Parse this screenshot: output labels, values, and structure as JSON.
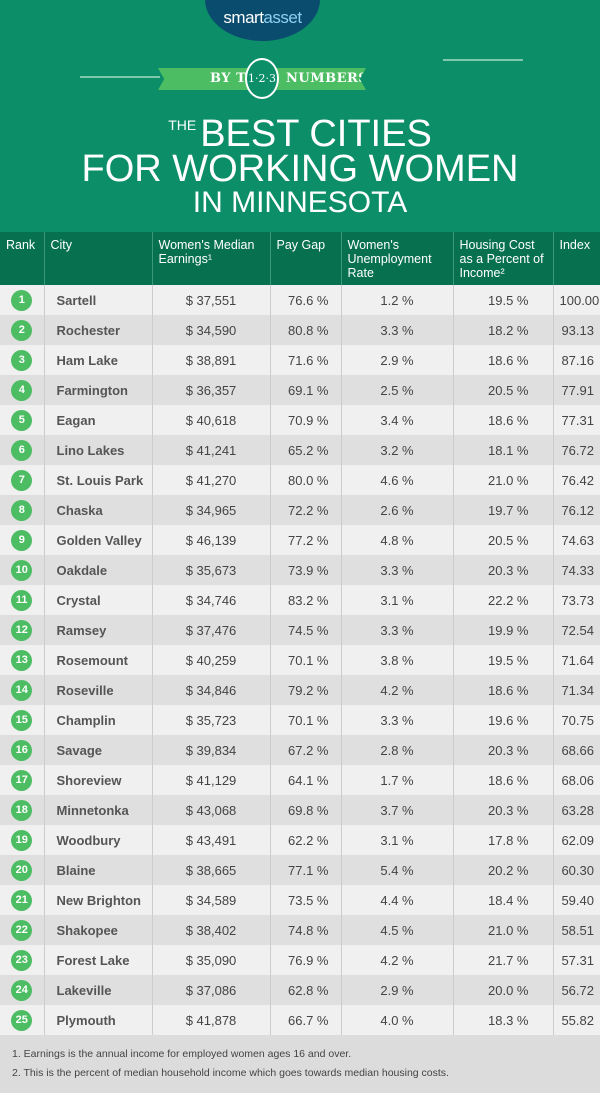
{
  "brand": {
    "part1": "smart",
    "part2": "asset"
  },
  "banner": {
    "left": "BY THE",
    "badge": "1·2·3",
    "right": "NUMBERS"
  },
  "title": {
    "the": "THE",
    "line1": "BEST CITIES",
    "line2": "FOR WORKING WOMEN",
    "line3": "IN MINNESOTA"
  },
  "colors": {
    "background": "#0c8f68",
    "header": "#07714f",
    "rank_badge": "#4cbd62",
    "logo": "#0a4c6e"
  },
  "table": {
    "headers": [
      "Rank",
      "City",
      "Women's Median Earnings¹",
      "Pay Gap",
      "Women's Unemployment Rate",
      "Housing Cost as a Percent of Income²",
      "Index"
    ],
    "rows": [
      [
        "1",
        "Sartell",
        "$  37,551",
        "76.6 %",
        "1.2 %",
        "19.5 %",
        "100.00"
      ],
      [
        "2",
        "Rochester",
        "$ 34,590",
        "80.8 %",
        "3.3 %",
        "18.2 %",
        "93.13"
      ],
      [
        "3",
        "Ham Lake",
        "$ 38,891",
        "71.6 %",
        "2.9 %",
        "18.6 %",
        "87.16"
      ],
      [
        "4",
        "Farmington",
        "$ 36,357",
        "69.1 %",
        "2.5 %",
        "20.5 %",
        "77.91"
      ],
      [
        "5",
        "Eagan",
        "$ 40,618",
        "70.9 %",
        "3.4 %",
        "18.6 %",
        "77.31"
      ],
      [
        "6",
        "Lino Lakes",
        "$  41,241",
        "65.2 %",
        "3.2 %",
        "18.1 %",
        "76.72"
      ],
      [
        "7",
        "St. Louis Park",
        "$ 41,270",
        "80.0 %",
        "4.6 %",
        "21.0 %",
        "76.42"
      ],
      [
        "8",
        "Chaska",
        "$ 34,965",
        "72.2 %",
        "2.6 %",
        "19.7 %",
        "76.12"
      ],
      [
        "9",
        "Golden Valley",
        "$ 46,139",
        "77.2 %",
        "4.8 %",
        "20.5 %",
        "74.63"
      ],
      [
        "10",
        "Oakdale",
        "$ 35,673",
        "73.9 %",
        "3.3 %",
        "20.3 %",
        "74.33"
      ],
      [
        "11",
        "Crystal",
        "$ 34,746",
        "83.2 %",
        "3.1 %",
        "22.2 %",
        "73.73"
      ],
      [
        "12",
        "Ramsey",
        "$ 37,476",
        "74.5 %",
        "3.3 %",
        "19.9 %",
        "72.54"
      ],
      [
        "13",
        "Rosemount",
        "$ 40,259",
        "70.1 %",
        "3.8 %",
        "19.5 %",
        "71.64"
      ],
      [
        "14",
        "Roseville",
        "$ 34,846",
        "79.2 %",
        "4.2 %",
        "18.6 %",
        "71.34"
      ],
      [
        "15",
        "Champlin",
        "$ 35,723",
        "70.1 %",
        "3.3 %",
        "19.6 %",
        "70.75"
      ],
      [
        "16",
        "Savage",
        "$ 39,834",
        "67.2 %",
        "2.8 %",
        "20.3 %",
        "68.66"
      ],
      [
        "17",
        "Shoreview",
        "$  41,129",
        "64.1 %",
        "1.7 %",
        "18.6 %",
        "68.06"
      ],
      [
        "18",
        "Minnetonka",
        "$ 43,068",
        "69.8 %",
        "3.7 %",
        "20.3 %",
        "63.28"
      ],
      [
        "19",
        "Woodbury",
        "$ 43,491",
        "62.2 %",
        "3.1 %",
        "17.8 %",
        "62.09"
      ],
      [
        "20",
        "Blaine",
        "$ 38,665",
        "77.1 %",
        "5.4 %",
        "20.2 %",
        "60.30"
      ],
      [
        "21",
        "New Brighton",
        "$ 34,589",
        "73.5 %",
        "4.4 %",
        "18.4 %",
        "59.40"
      ],
      [
        "22",
        "Shakopee",
        "$ 38,402",
        "74.8 %",
        "4.5 %",
        "21.0 %",
        "58.51"
      ],
      [
        "23",
        "Forest Lake",
        "$ 35,090",
        "76.9 %",
        "4.2 %",
        "21.7 %",
        "57.31"
      ],
      [
        "24",
        "Lakeville",
        "$ 37,086",
        "62.8 %",
        "2.9 %",
        "20.0 %",
        "56.72"
      ],
      [
        "25",
        "Plymouth",
        "$  41,878",
        "66.7 %",
        "4.0 %",
        "18.3 %",
        "55.82"
      ]
    ]
  },
  "footnotes": [
    "1.  Earnings is the annual income for employed women ages 16 and over.",
    "2. This is the percent of median household income which goes towards median housing costs."
  ]
}
